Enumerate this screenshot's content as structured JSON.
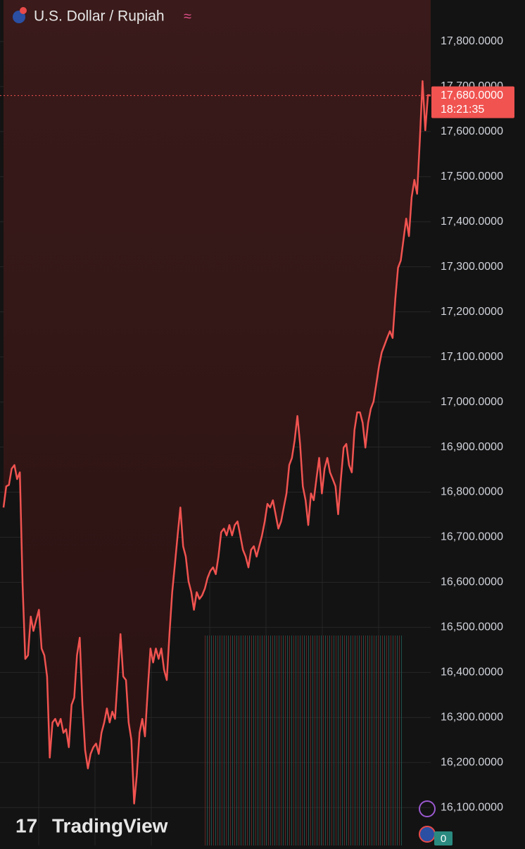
{
  "chart_data": {
    "type": "line",
    "title": "U.S. Dollar / Rupiah",
    "status_icon": "≈",
    "color": "#f05350",
    "grid": true,
    "values": [
      16766,
      16813,
      16816,
      16852,
      16860,
      16829,
      16844,
      16594,
      16430,
      16438,
      16524,
      16492,
      16516,
      16539,
      16453,
      16438,
      16391,
      16211,
      16289,
      16297,
      16281,
      16297,
      16266,
      16274,
      16234,
      16328,
      16344,
      16438,
      16477,
      16328,
      16227,
      16187,
      16219,
      16234,
      16242,
      16219,
      16266,
      16289,
      16320,
      16289,
      16313,
      16297,
      16391,
      16485,
      16391,
      16383,
      16289,
      16250,
      16109,
      16172,
      16266,
      16297,
      16258,
      16360,
      16453,
      16422,
      16453,
      16430,
      16453,
      16406,
      16383,
      16485,
      16578,
      16641,
      16704,
      16766,
      16680,
      16657,
      16602,
      16578,
      16539,
      16578,
      16563,
      16571,
      16586,
      16610,
      16625,
      16633,
      16618,
      16657,
      16711,
      16719,
      16704,
      16727,
      16704,
      16727,
      16735,
      16704,
      16672,
      16657,
      16633,
      16672,
      16680,
      16657,
      16680,
      16704,
      16735,
      16774,
      16766,
      16782,
      16751,
      16719,
      16735,
      16766,
      16797,
      16860,
      16876,
      16915,
      16969,
      16907,
      16813,
      16782,
      16727,
      16797,
      16782,
      16829,
      16876,
      16797,
      16852,
      16876,
      16844,
      16829,
      16813,
      16751,
      16829,
      16899,
      16907,
      16860,
      16844,
      16938,
      16977,
      16977,
      16954,
      16899,
      16954,
      16985,
      17001,
      17040,
      17079,
      17110,
      17126,
      17142,
      17157,
      17142,
      17228,
      17298,
      17314,
      17360,
      17407,
      17368,
      17454,
      17493,
      17462,
      17579,
      17712,
      17603,
      17681,
      17680
    ],
    "ylim": [
      16016,
      17892
    ],
    "yticks": [
      {
        "value": 16100,
        "label": "16,100.0000"
      },
      {
        "value": 16200,
        "label": "16,200.0000"
      },
      {
        "value": 16300,
        "label": "16,300.0000"
      },
      {
        "value": 16400,
        "label": "16,400.0000"
      },
      {
        "value": 16500,
        "label": "16,500.0000"
      },
      {
        "value": 16600,
        "label": "16,600.0000"
      },
      {
        "value": 16700,
        "label": "16,700.0000"
      },
      {
        "value": 16800,
        "label": "16,800.0000"
      },
      {
        "value": 16900,
        "label": "16,900.0000"
      },
      {
        "value": 17000,
        "label": "17,000.0000"
      },
      {
        "value": 17100,
        "label": "17,100.0000"
      },
      {
        "value": 17200,
        "label": "17,200.0000"
      },
      {
        "value": 17300,
        "label": "17,300.0000"
      },
      {
        "value": 17400,
        "label": "17,400.0000"
      },
      {
        "value": 17500,
        "label": "17,500.0000"
      },
      {
        "value": 17600,
        "label": "17,600.0000"
      },
      {
        "value": 17700,
        "label": "17,700.0000"
      },
      {
        "value": 17800,
        "label": "17,800.0000"
      }
    ],
    "last_price": {
      "value": 17680,
      "label": "17,680.0000"
    },
    "countdown": "18:21:35"
  },
  "ui": {
    "watermark": "TradingView",
    "badge": "0"
  }
}
